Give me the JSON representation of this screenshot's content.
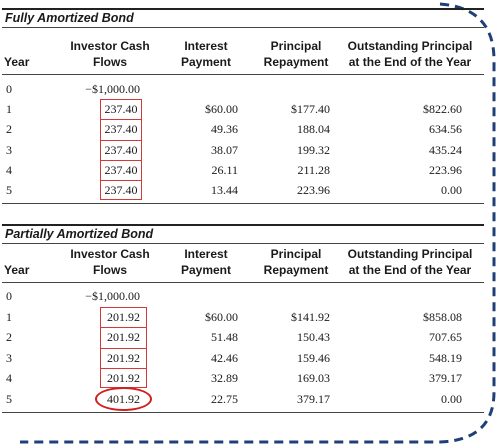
{
  "tables": [
    {
      "title": "Fully Amortized Bond",
      "headers": {
        "year": "Year",
        "cash_flows_1": "Investor Cash",
        "cash_flows_2": "Flows",
        "interest_1": "Interest",
        "interest_2": "Payment",
        "principal_1": "Principal",
        "principal_2": "Repayment",
        "outstanding_1": "Outstanding Principal",
        "outstanding_2": "at the End of the Year"
      },
      "rows": [
        {
          "year": "0",
          "cash": "−$1,000.00",
          "interest": "",
          "principal": "",
          "outstanding": ""
        },
        {
          "year": "1",
          "cash": "237.40",
          "interest": "$60.00",
          "principal": "$177.40",
          "outstanding": "$822.60"
        },
        {
          "year": "2",
          "cash": "237.40",
          "interest": "49.36",
          "principal": "188.04",
          "outstanding": "634.56"
        },
        {
          "year": "3",
          "cash": "237.40",
          "interest": "38.07",
          "principal": "199.32",
          "outstanding": "435.24"
        },
        {
          "year": "4",
          "cash": "237.40",
          "interest": "26.11",
          "principal": "211.28",
          "outstanding": "223.96"
        },
        {
          "year": "5",
          "cash": "237.40",
          "interest": "13.44",
          "principal": "223.96",
          "outstanding": "0.00"
        }
      ]
    },
    {
      "title": "Partially Amortized Bond",
      "headers": {
        "year": "Year",
        "cash_flows_1": "Investor Cash",
        "cash_flows_2": "Flows",
        "interest_1": "Interest",
        "interest_2": "Payment",
        "principal_1": "Principal",
        "principal_2": "Repayment",
        "outstanding_1": "Outstanding Principal",
        "outstanding_2": "at the End of the Year"
      },
      "rows": [
        {
          "year": "0",
          "cash": "−$1,000.00",
          "interest": "",
          "principal": "",
          "outstanding": ""
        },
        {
          "year": "1",
          "cash": "201.92",
          "interest": "$60.00",
          "principal": "$141.92",
          "outstanding": "$858.08"
        },
        {
          "year": "2",
          "cash": "201.92",
          "interest": "51.48",
          "principal": "150.43",
          "outstanding": "707.65"
        },
        {
          "year": "3",
          "cash": "201.92",
          "interest": "42.46",
          "principal": "159.46",
          "outstanding": "548.19"
        },
        {
          "year": "4",
          "cash": "201.92",
          "interest": "32.89",
          "principal": "169.03",
          "outstanding": "379.17"
        },
        {
          "year": "5",
          "cash": "401.92",
          "interest": "22.75",
          "principal": "379.17",
          "outstanding": "0.00"
        }
      ]
    }
  ],
  "colors": {
    "highlight_box": "#d23a3a",
    "highlight_ellipse": "#d21e1e",
    "frame_dash": "#1f3f78"
  }
}
